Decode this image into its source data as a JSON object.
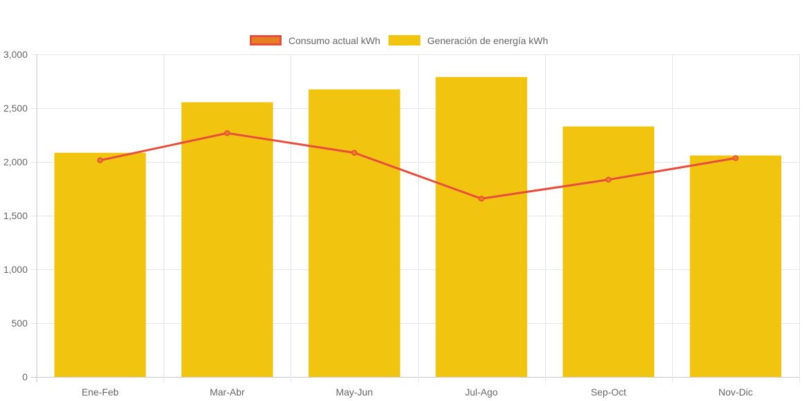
{
  "chart_data": {
    "type": "bar",
    "categories": [
      "Ene-Feb",
      "Mar-Abr",
      "May-Jun",
      "Jul-Ago",
      "Sep-Oct",
      "Nov-Dic"
    ],
    "series": [
      {
        "name": "Consumo actual kWh",
        "type": "line",
        "values": [
          2015,
          2268,
          2085,
          1658,
          1835,
          2035
        ],
        "color": "#e74c3c",
        "fill_color": "#e67e22"
      },
      {
        "name": "Generación de energía kWh",
        "type": "bar",
        "values": [
          2085,
          2555,
          2675,
          2790,
          2330,
          2060
        ],
        "color": "#f1c40f"
      }
    ],
    "ylim": [
      0,
      3000
    ],
    "yticks": [
      0,
      500,
      1000,
      1500,
      2000,
      2500,
      3000
    ],
    "ytick_labels": [
      "0",
      "500",
      "1,000",
      "1,500",
      "2,000",
      "2,500",
      "3,000"
    ],
    "grid": true,
    "legend_position": "top-center",
    "grid_color": "#e5e5e5",
    "axis_color": "#c8c8c8",
    "text_color": "#666666"
  }
}
